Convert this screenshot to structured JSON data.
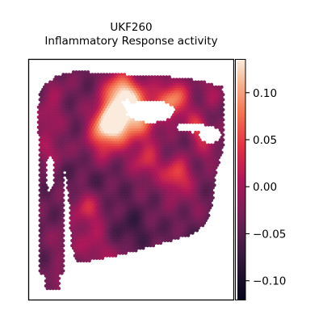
{
  "chart_data": {
    "type": "heatmap",
    "title_lines": [
      "UKF260",
      "Inflammatory Response activity"
    ],
    "colormap": "rocket",
    "colorbar": {
      "range": [
        -0.12,
        0.135
      ],
      "ticks": [
        {
          "value": 0.1,
          "label": "0.10"
        },
        {
          "value": 0.05,
          "label": "0.05"
        },
        {
          "value": 0.0,
          "label": "0.00"
        },
        {
          "value": -0.05,
          "label": "−0.05"
        },
        {
          "value": -0.1,
          "label": "−0.10"
        }
      ],
      "placement": "right"
    },
    "grid": false,
    "hotspots": [
      {
        "x": 0.5,
        "y": 0.2,
        "value": 0.13,
        "spread": 0.085
      },
      {
        "x": 0.38,
        "y": 0.24,
        "value": 0.115,
        "spread": 0.055
      },
      {
        "x": 0.72,
        "y": 0.14,
        "value": 0.09,
        "spread": 0.06
      },
      {
        "x": 0.44,
        "y": 0.1,
        "value": 0.08,
        "spread": 0.06
      },
      {
        "x": 0.74,
        "y": 0.48,
        "value": 0.06,
        "spread": 0.055
      },
      {
        "x": 0.58,
        "y": 0.42,
        "value": 0.03,
        "spread": 0.055
      },
      {
        "x": 0.27,
        "y": 0.63,
        "value": 0.035,
        "spread": 0.06
      },
      {
        "x": 0.35,
        "y": 0.32,
        "value": 0.03,
        "spread": 0.07
      },
      {
        "x": 0.06,
        "y": 0.22,
        "value": 0.01,
        "spread": 0.05
      },
      {
        "x": 0.3,
        "y": 0.8,
        "value": 0.01,
        "spread": 0.06
      },
      {
        "x": 0.45,
        "y": 0.9,
        "value": 0.04,
        "spread": 0.05
      },
      {
        "x": 0.62,
        "y": 0.92,
        "value": 0.02,
        "spread": 0.05
      },
      {
        "x": 0.14,
        "y": 0.78,
        "value": -0.01,
        "spread": 0.05
      },
      {
        "x": 0.11,
        "y": 0.97,
        "value": 0.0,
        "spread": 0.04
      },
      {
        "x": 0.1,
        "y": 0.09,
        "value": -0.01,
        "spread": 0.05
      },
      {
        "x": 0.07,
        "y": 0.37,
        "value": 0.01,
        "spread": 0.05
      },
      {
        "x": 0.9,
        "y": 0.35,
        "value": 0.01,
        "spread": 0.05
      },
      {
        "x": 0.93,
        "y": 0.1,
        "value": 0.0,
        "spread": 0.05
      },
      {
        "x": 0.85,
        "y": 0.26,
        "value": 0.05,
        "spread": 0.04
      },
      {
        "x": 0.32,
        "y": 0.55,
        "value": -0.06,
        "spread": 0.06
      },
      {
        "x": 0.5,
        "y": 0.72,
        "value": -0.07,
        "spread": 0.07
      },
      {
        "x": 0.2,
        "y": 0.47,
        "value": -0.05,
        "spread": 0.05
      },
      {
        "x": 0.8,
        "y": 0.78,
        "value": -0.05,
        "spread": 0.07
      },
      {
        "x": 0.67,
        "y": 0.62,
        "value": -0.03,
        "spread": 0.06
      },
      {
        "x": 0.6,
        "y": 0.3,
        "value": -0.03,
        "spread": 0.05
      },
      {
        "x": 0.82,
        "y": 0.6,
        "value": -0.02,
        "spread": 0.05
      }
    ]
  }
}
